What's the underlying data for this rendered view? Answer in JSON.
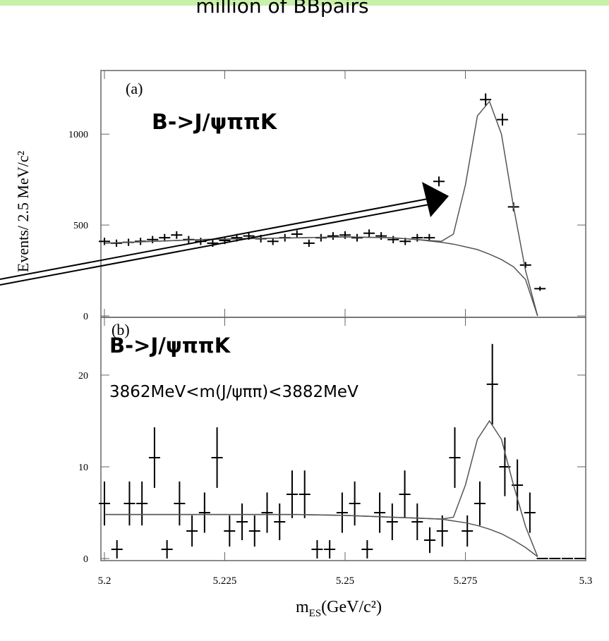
{
  "header": {
    "title": "million of BBpairs"
  },
  "chart_data": [
    {
      "type": "errorbar",
      "annotations": [
        "(a)",
        "B->J/ψππK"
      ],
      "ylabel": "Events/ 2.5 MeV/c²",
      "xlim": [
        5.2,
        5.3
      ],
      "xticks": [
        5.2,
        5.225,
        5.25,
        5.275,
        5.3
      ],
      "ylim": [
        0,
        1350
      ],
      "yticks": [
        0,
        500,
        1000
      ],
      "series": [
        {
          "style": "points",
          "color": "#000000",
          "x": [
            5.2,
            5.2025,
            5.205,
            5.2075,
            5.21,
            5.2125,
            5.215,
            5.2175,
            5.22,
            5.2225,
            5.225,
            5.2275,
            5.23,
            5.2325,
            5.235,
            5.2375,
            5.24,
            5.2425,
            5.245,
            5.2475,
            5.25,
            5.2525,
            5.255,
            5.2575,
            5.26,
            5.2625,
            5.265,
            5.2675,
            5.2695,
            5.2792,
            5.2827,
            5.285,
            5.2875,
            5.2905
          ],
          "values": [
            410,
            400,
            405,
            410,
            420,
            430,
            445,
            420,
            410,
            400,
            415,
            430,
            440,
            425,
            410,
            430,
            450,
            400,
            430,
            440,
            445,
            430,
            455,
            440,
            420,
            410,
            430,
            430,
            740,
            1190,
            1080,
            600,
            280,
            150
          ],
          "errors": [
            20,
            20,
            20,
            20,
            20,
            21,
            21,
            20,
            20,
            20,
            20,
            21,
            21,
            21,
            20,
            21,
            21,
            20,
            21,
            21,
            21,
            21,
            21,
            21,
            20,
            20,
            21,
            21,
            27,
            34,
            33,
            24,
            17,
            12
          ]
        },
        {
          "style": "line",
          "color": "#555555",
          "x": [
            5.2,
            5.21,
            5.22,
            5.23,
            5.24,
            5.25,
            5.26,
            5.265,
            5.27,
            5.2725,
            5.275,
            5.2775,
            5.28,
            5.2825,
            5.285,
            5.2875,
            5.29
          ],
          "values": [
            400,
            410,
            420,
            425,
            430,
            435,
            430,
            420,
            405,
            395,
            380,
            365,
            340,
            310,
            270,
            200,
            0
          ]
        },
        {
          "style": "line",
          "color": "#555555",
          "x": [
            5.2,
            5.21,
            5.22,
            5.23,
            5.24,
            5.25,
            5.26,
            5.265,
            5.27,
            5.2725,
            5.275,
            5.2775,
            5.28,
            5.2825,
            5.285,
            5.2875,
            5.29
          ],
          "values": [
            400,
            410,
            420,
            425,
            430,
            435,
            430,
            420,
            410,
            450,
            720,
            1100,
            1180,
            1000,
            600,
            250,
            0
          ]
        }
      ]
    },
    {
      "type": "errorbar",
      "annotations": [
        "(b)",
        "B->J/ψππK",
        "3862MeV<m(J/ψππ)<3882MeV"
      ],
      "xlabel": [
        "m",
        "ES",
        "(GeV/c²)"
      ],
      "xlim": [
        5.2,
        5.3
      ],
      "xticks": [
        5.2,
        5.225,
        5.25,
        5.275,
        5.3
      ],
      "ylim": [
        0,
        26.3
      ],
      "yticks": [
        0,
        10,
        20
      ],
      "series": [
        {
          "style": "points",
          "color": "#000000",
          "x": [
            5.2,
            5.2026,
            5.2052,
            5.2078,
            5.2104,
            5.213,
            5.2156,
            5.2182,
            5.2208,
            5.2234,
            5.226,
            5.2286,
            5.2312,
            5.2338,
            5.2364,
            5.239,
            5.2416,
            5.2442,
            5.2468,
            5.2494,
            5.252,
            5.2546,
            5.2572,
            5.2598,
            5.2624,
            5.265,
            5.2676,
            5.2702,
            5.2728,
            5.2754,
            5.278,
            5.2806,
            5.2832,
            5.2858,
            5.2884,
            5.291,
            5.2936,
            5.2962,
            5.2988
          ],
          "values": [
            6,
            1,
            6,
            6,
            11,
            1,
            6,
            3,
            5,
            11,
            3,
            4,
            3,
            5,
            4,
            7,
            7,
            1,
            1,
            5,
            6,
            1,
            5,
            4,
            7,
            4,
            2,
            3,
            11,
            3,
            6,
            19,
            10,
            8,
            5,
            0,
            0,
            0,
            0
          ],
          "errors": [
            2.4,
            1,
            2.4,
            2.4,
            3.3,
            1,
            2.4,
            1.7,
            2.2,
            3.3,
            1.7,
            2,
            1.7,
            2.2,
            2,
            2.6,
            2.6,
            1,
            1,
            2.2,
            2.4,
            1,
            2.2,
            2,
            2.6,
            2,
            1.4,
            1.7,
            3.3,
            1.7,
            2.4,
            4.4,
            3.2,
            2.8,
            2.2,
            0,
            0,
            0,
            0
          ]
        },
        {
          "style": "line",
          "color": "#555555",
          "x": [
            5.2,
            5.21,
            5.22,
            5.23,
            5.24,
            5.25,
            5.26,
            5.265,
            5.27,
            5.2725,
            5.275,
            5.2775,
            5.28,
            5.2825,
            5.285,
            5.2875,
            5.29
          ],
          "values": [
            4.8,
            4.8,
            4.8,
            4.8,
            4.8,
            4.7,
            4.5,
            4.4,
            4.3,
            4.1,
            3.9,
            3.6,
            3.2,
            2.7,
            2,
            1.2,
            0.2
          ]
        },
        {
          "style": "line",
          "color": "#555555",
          "x": [
            5.2,
            5.21,
            5.22,
            5.23,
            5.24,
            5.25,
            5.26,
            5.265,
            5.27,
            5.2725,
            5.275,
            5.2775,
            5.28,
            5.2825,
            5.285,
            5.2875,
            5.29
          ],
          "values": [
            4.8,
            4.8,
            4.8,
            4.8,
            4.8,
            4.7,
            4.5,
            4.4,
            4.3,
            4.5,
            8,
            13,
            15,
            13,
            8,
            3.5,
            0.2
          ]
        }
      ]
    }
  ]
}
